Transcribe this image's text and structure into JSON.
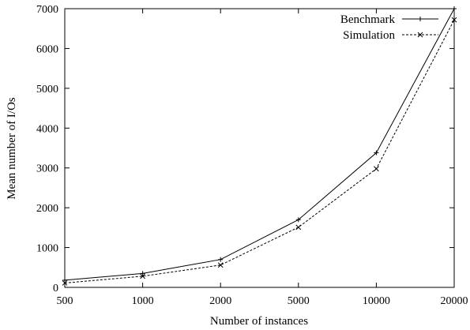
{
  "chart_data": {
    "type": "line",
    "title": "",
    "xlabel": "Number of instances",
    "ylabel": "Mean number of I/Os",
    "categories": [
      "500",
      "1000",
      "2000",
      "5000",
      "10000",
      "20000"
    ],
    "ylim": [
      0,
      7000
    ],
    "yticks": [
      0,
      1000,
      2000,
      3000,
      4000,
      5000,
      6000,
      7000
    ],
    "grid": false,
    "legend_position": "top-right",
    "series": [
      {
        "name": "Benchmark",
        "values": [
          180,
          350,
          700,
          1700,
          3380,
          7000
        ],
        "marker": "plus",
        "line_style": "solid",
        "color": "#000000"
      },
      {
        "name": "Simulation",
        "values": [
          110,
          280,
          560,
          1510,
          2980,
          6720
        ],
        "marker": "cross",
        "line_style": "dashed",
        "color": "#000000"
      }
    ]
  }
}
